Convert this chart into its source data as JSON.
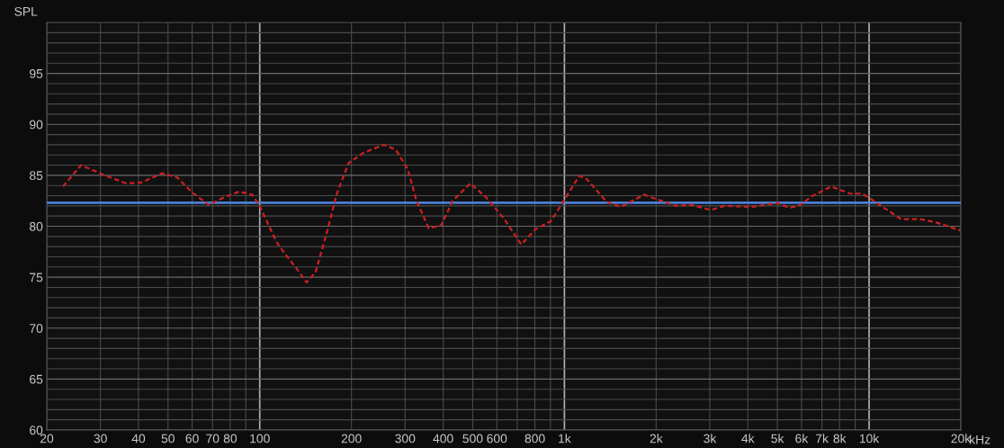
{
  "chart_data": {
    "type": "line",
    "ylabel": "SPL",
    "log": "x",
    "xlim": [
      20,
      20000
    ],
    "ylim": [
      60,
      100
    ],
    "xticks": [
      20,
      30,
      40,
      50,
      60,
      70,
      80,
      {
        "value": 90,
        "label": null
      },
      100,
      200,
      300,
      400,
      500,
      600,
      {
        "value": 700,
        "label": null
      },
      800,
      {
        "value": 900,
        "label": null
      },
      {
        "value": 1000,
        "label": "1k"
      },
      {
        "value": 2000,
        "label": "2k"
      },
      {
        "value": 3000,
        "label": "3k"
      },
      {
        "value": 4000,
        "label": "4k"
      },
      {
        "value": 5000,
        "label": "5k"
      },
      {
        "value": 6000,
        "label": "6k"
      },
      {
        "value": 7000,
        "label": "7k"
      },
      {
        "value": 8000,
        "label": "8k"
      },
      {
        "value": 9000,
        "label": null
      },
      {
        "value": 10000,
        "label": "10k"
      },
      {
        "value": 20000,
        "label": "20k"
      }
    ],
    "xlabel": "kHz",
    "yticks": [
      60,
      {
        "value": 61,
        "label": null
      },
      {
        "value": 62,
        "label": null
      },
      {
        "value": 63,
        "label": null
      },
      {
        "value": 64,
        "label": null
      },
      65,
      {
        "value": 66,
        "label": null
      },
      {
        "value": 67,
        "label": null
      },
      {
        "value": 68,
        "label": null
      },
      {
        "value": 69,
        "label": null
      },
      70,
      {
        "value": 71,
        "label": null
      },
      {
        "value": 72,
        "label": null
      },
      {
        "value": 73,
        "label": null
      },
      {
        "value": 74,
        "label": null
      },
      75,
      {
        "value": 76,
        "label": null
      },
      {
        "value": 77,
        "label": null
      },
      {
        "value": 78,
        "label": null
      },
      {
        "value": 79,
        "label": null
      },
      80,
      {
        "value": 81,
        "label": null
      },
      {
        "value": 82,
        "label": null
      },
      {
        "value": 83,
        "label": null
      },
      {
        "value": 84,
        "label": null
      },
      85,
      {
        "value": 86,
        "label": null
      },
      {
        "value": 87,
        "label": null
      },
      {
        "value": 88,
        "label": null
      },
      {
        "value": 89,
        "label": null
      },
      90,
      {
        "value": 91,
        "label": null
      },
      {
        "value": 92,
        "label": null
      },
      {
        "value": 93,
        "label": null
      },
      {
        "value": 94,
        "label": null
      },
      95,
      {
        "value": 96,
        "label": null
      },
      {
        "value": 97,
        "label": null
      },
      {
        "value": 98,
        "label": null
      },
      {
        "value": 99,
        "label": null
      }
    ],
    "grid": true,
    "line_style": "dashed",
    "marker": "none",
    "legend": false,
    "ref_lines": [
      {
        "axis": "y",
        "value": 82.3,
        "color": "#4a7fd6",
        "line_style": "solid"
      }
    ],
    "series": [
      {
        "color": "#cc2020",
        "x": [
          22.6,
          25.95,
          30.4,
          36.5,
          40.9,
          47.9,
          53.5,
          60.1,
          68.1,
          75.8,
          85.6,
          94.5,
          100,
          113.3,
          121,
          132.5,
          142.5,
          152.6,
          167.5,
          178.6,
          195.7,
          218.8,
          255.7,
          280,
          306,
          327,
          359,
          394,
          430,
          491,
          555,
          635,
          722,
          802,
          903,
          1000,
          1116,
          1170,
          1376,
          1530,
          1828,
          2313,
          2600,
          3024,
          3356,
          4140,
          4990,
          5480,
          5950,
          6460,
          7520,
          8660,
          9500,
          10100,
          12740,
          14650,
          16480,
          19900
        ],
        "values": [
          83.9,
          86.0,
          85.1,
          84.2,
          84.3,
          85.2,
          84.8,
          83.3,
          82.1,
          82.8,
          83.4,
          83.1,
          82.0,
          78.5,
          77.3,
          75.8,
          74.5,
          75.5,
          79.8,
          83.1,
          86.2,
          87.2,
          88.0,
          87.5,
          85.6,
          82.5,
          79.8,
          80.1,
          82.5,
          84.2,
          82.8,
          80.7,
          78.2,
          79.7,
          80.5,
          82.6,
          84.9,
          84.8,
          82.4,
          81.9,
          83.1,
          82.0,
          82.1,
          81.6,
          82.0,
          81.9,
          82.3,
          81.8,
          82.1,
          82.9,
          83.9,
          83.2,
          83.2,
          82.7,
          80.7,
          80.7,
          80.4,
          79.6
        ]
      }
    ]
  }
}
